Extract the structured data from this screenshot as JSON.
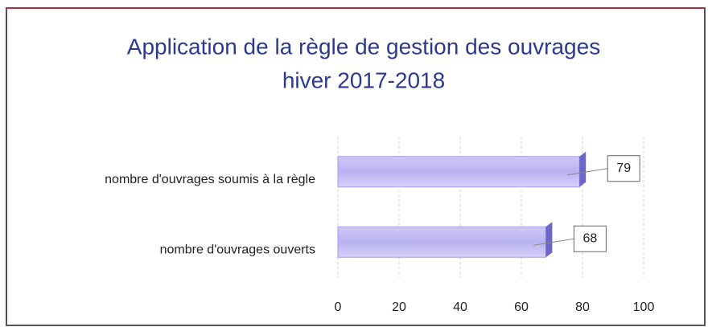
{
  "chart_data": {
    "type": "bar",
    "orientation": "horizontal",
    "title": [
      "Application de la règle de gestion des ouvrages",
      "hiver 2017-2018"
    ],
    "categories": [
      "nombre d'ouvrages soumis à la règle",
      "nombre d'ouvrages ouverts"
    ],
    "values": [
      79,
      68
    ],
    "color": "#b9b2f2",
    "xlim": [
      0,
      100
    ],
    "xticks": [
      0,
      20,
      40,
      60,
      80,
      100
    ],
    "grid": true
  }
}
